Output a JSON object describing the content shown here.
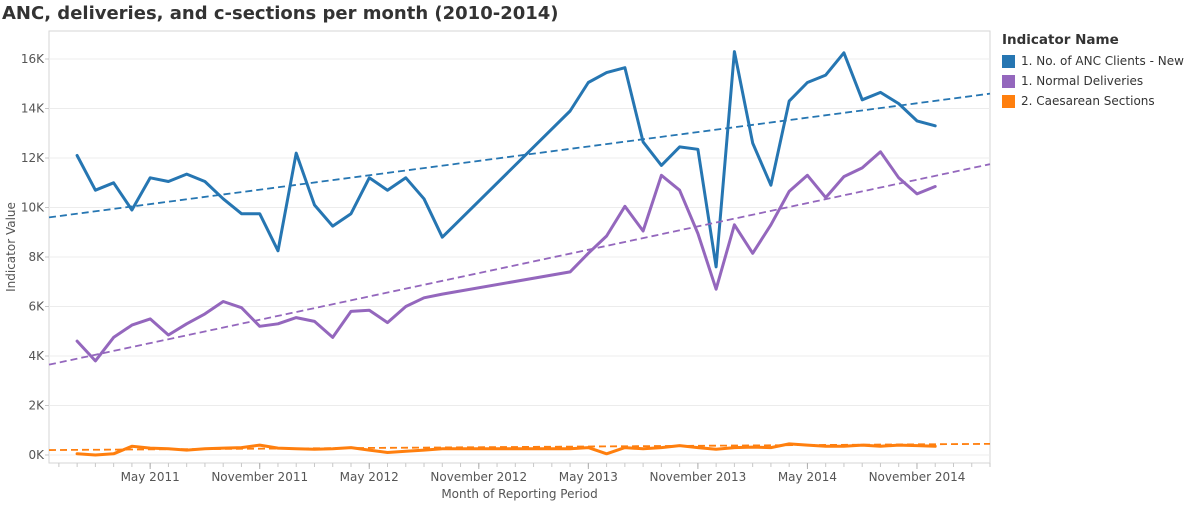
{
  "chart_data": {
    "type": "line",
    "title": "ANC, deliveries, and c-sections  per month (2010-2014)",
    "xlabel": "Month of Reporting Period",
    "ylabel": "Indicator Value",
    "ylim": [
      0,
      17000
    ],
    "y_ticks": [
      0,
      2000,
      4000,
      6000,
      8000,
      10000,
      12000,
      14000,
      16000
    ],
    "y_tick_labels": [
      "0K",
      "2K",
      "4K",
      "6K",
      "8K",
      "10K",
      "12K",
      "14K",
      "16K"
    ],
    "x_ticks": [
      "2011-05",
      "2011-11",
      "2012-05",
      "2012-11",
      "2013-05",
      "2013-11",
      "2014-05",
      "2014-11"
    ],
    "x_tick_labels": [
      "May 2011",
      "November 2011",
      "May 2012",
      "November 2012",
      "May 2013",
      "November 2013",
      "May 2014",
      "November 2014"
    ],
    "x_range": [
      "2010-11-15",
      "2015-03-01"
    ],
    "grid": true,
    "legend_title": "Indicator Name",
    "legend_position": "right",
    "series": [
      {
        "name": "1. No. of ANC Clients - New",
        "color": "#2676b2",
        "trend": [
          9600,
          14600
        ],
        "points": [
          [
            "2011-01",
            12100
          ],
          [
            "2011-02",
            10700
          ],
          [
            "2011-03",
            11000
          ],
          [
            "2011-04",
            9900
          ],
          [
            "2011-05",
            11200
          ],
          [
            "2011-06",
            11050
          ],
          [
            "2011-07",
            11350
          ],
          [
            "2011-08",
            11050
          ],
          [
            "2011-09",
            10350
          ],
          [
            "2011-10",
            9750
          ],
          [
            "2011-11",
            9750
          ],
          [
            "2011-12",
            8250
          ],
          [
            "2012-01",
            12200
          ],
          [
            "2012-02",
            10100
          ],
          [
            "2012-03",
            9250
          ],
          [
            "2012-04",
            9750
          ],
          [
            "2012-05",
            11200
          ],
          [
            "2012-06",
            10700
          ],
          [
            "2012-07",
            11200
          ],
          [
            "2012-08",
            10350
          ],
          [
            "2012-09",
            8800
          ],
          [
            "2013-04",
            13900
          ],
          [
            "2013-05",
            15050
          ],
          [
            "2013-06",
            15450
          ],
          [
            "2013-07",
            15650
          ],
          [
            "2013-08",
            12650
          ],
          [
            "2013-09",
            11700
          ],
          [
            "2013-10",
            12450
          ],
          [
            "2013-11",
            12350
          ],
          [
            "2013-12",
            7600
          ],
          [
            "2014-01",
            16300
          ],
          [
            "2014-02",
            12600
          ],
          [
            "2014-03",
            10900
          ],
          [
            "2014-04",
            14300
          ],
          [
            "2014-05",
            15050
          ],
          [
            "2014-06",
            15350
          ],
          [
            "2014-07",
            16250
          ],
          [
            "2014-08",
            14350
          ],
          [
            "2014-09",
            14650
          ],
          [
            "2014-10",
            14200
          ],
          [
            "2014-11",
            13500
          ],
          [
            "2014-12",
            13300
          ]
        ]
      },
      {
        "name": "1. Normal Deliveries",
        "color": "#9467bd",
        "trend": [
          3650,
          11750
        ],
        "points": [
          [
            "2011-01",
            4600
          ],
          [
            "2011-02",
            3800
          ],
          [
            "2011-03",
            4750
          ],
          [
            "2011-04",
            5250
          ],
          [
            "2011-05",
            5500
          ],
          [
            "2011-06",
            4850
          ],
          [
            "2011-07",
            5300
          ],
          [
            "2011-08",
            5700
          ],
          [
            "2011-09",
            6200
          ],
          [
            "2011-10",
            5950
          ],
          [
            "2011-11",
            5200
          ],
          [
            "2011-12",
            5300
          ],
          [
            "2012-01",
            5550
          ],
          [
            "2012-02",
            5400
          ],
          [
            "2012-03",
            4750
          ],
          [
            "2012-04",
            5800
          ],
          [
            "2012-05",
            5850
          ],
          [
            "2012-06",
            5350
          ],
          [
            "2012-07",
            6000
          ],
          [
            "2012-08",
            6350
          ],
          [
            "2012-09",
            6500
          ],
          [
            "2013-04",
            7400
          ],
          [
            "2013-05",
            8150
          ],
          [
            "2013-06",
            8850
          ],
          [
            "2013-07",
            10050
          ],
          [
            "2013-08",
            9050
          ],
          [
            "2013-09",
            11300
          ],
          [
            "2013-10",
            10700
          ],
          [
            "2013-11",
            8950
          ],
          [
            "2013-12",
            6700
          ],
          [
            "2014-01",
            9300
          ],
          [
            "2014-02",
            8150
          ],
          [
            "2014-03",
            9300
          ],
          [
            "2014-04",
            10650
          ],
          [
            "2014-05",
            11300
          ],
          [
            "2014-06",
            10400
          ],
          [
            "2014-07",
            11250
          ],
          [
            "2014-08",
            11600
          ],
          [
            "2014-09",
            12250
          ],
          [
            "2014-10",
            11200
          ],
          [
            "2014-11",
            10550
          ],
          [
            "2014-12",
            10850
          ]
        ]
      },
      {
        "name": "2. Caesarean Sections",
        "color": "#ff7f0e",
        "trend": [
          200,
          450
        ],
        "points": [
          [
            "2011-01",
            50
          ],
          [
            "2011-02",
            0
          ],
          [
            "2011-03",
            50
          ],
          [
            "2011-04",
            350
          ],
          [
            "2011-05",
            280
          ],
          [
            "2011-06",
            250
          ],
          [
            "2011-07",
            200
          ],
          [
            "2011-08",
            250
          ],
          [
            "2011-09",
            280
          ],
          [
            "2011-10",
            300
          ],
          [
            "2011-11",
            400
          ],
          [
            "2011-12",
            280
          ],
          [
            "2012-01",
            250
          ],
          [
            "2012-02",
            230
          ],
          [
            "2012-03",
            250
          ],
          [
            "2012-04",
            300
          ],
          [
            "2012-05",
            200
          ],
          [
            "2012-06",
            100
          ],
          [
            "2012-07",
            150
          ],
          [
            "2012-08",
            200
          ],
          [
            "2012-09",
            250
          ],
          [
            "2013-04",
            250
          ],
          [
            "2013-05",
            300
          ],
          [
            "2013-06",
            50
          ],
          [
            "2013-07",
            300
          ],
          [
            "2013-08",
            250
          ],
          [
            "2013-09",
            300
          ],
          [
            "2013-10",
            380
          ],
          [
            "2013-11",
            300
          ],
          [
            "2013-12",
            230
          ],
          [
            "2014-01",
            300
          ],
          [
            "2014-02",
            320
          ],
          [
            "2014-03",
            300
          ],
          [
            "2014-04",
            450
          ],
          [
            "2014-05",
            400
          ],
          [
            "2014-06",
            350
          ],
          [
            "2014-07",
            350
          ],
          [
            "2014-08",
            400
          ],
          [
            "2014-09",
            350
          ],
          [
            "2014-10",
            400
          ],
          [
            "2014-11",
            380
          ],
          [
            "2014-12",
            350
          ]
        ]
      }
    ]
  }
}
